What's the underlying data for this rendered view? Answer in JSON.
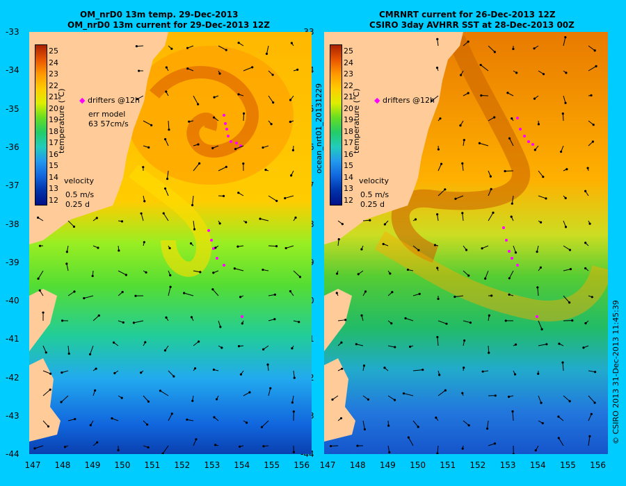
{
  "left_panel": {
    "title_line1": "OM_nrD0 13m temp. 29-Dec-2013",
    "title_line2": "OM_nrD0 13m current for 29-Dec-2013 12Z",
    "drifters_label": "drifters @12h",
    "err_label_1": "err model",
    "err_label_2": "63 57cm/s",
    "velocity_label": "velocity",
    "velocity_scale_1": "0.5 m/s",
    "velocity_scale_2": "0.25 d",
    "colorbar_title": "temperature (℃)"
  },
  "right_panel": {
    "title_line1": "CMRNRT current for 26-Dec-2013 12Z",
    "title_line2": "CSIRO 3day AVHRR SST at 28-Dec-2013 00Z",
    "drifters_label": "drifters @12h",
    "velocity_label": "velocity",
    "velocity_scale_1": "0.5 m/s",
    "velocity_scale_2": "0.25 d",
    "colorbar_title": "temperature (℃)",
    "side_label": "ocean_nrt01_20131229"
  },
  "credit": "© CSIRO 2013  31-Dec-2013 11:45:39",
  "y_ticks": [
    "-33",
    "-34",
    "-35",
    "-36",
    "-37",
    "-38",
    "-39",
    "-40",
    "-41",
    "-42",
    "-43",
    "-44"
  ],
  "x_ticks": [
    "147",
    "148",
    "149",
    "150",
    "151",
    "152",
    "153",
    "154",
    "155",
    "156"
  ],
  "colorbar_labels": [
    "25",
    "24",
    "23",
    "22",
    "21",
    "20",
    "19",
    "18",
    "17",
    "16",
    "15",
    "14",
    "13",
    "12"
  ],
  "colors": {
    "background": "#00ccff",
    "land": "#ffcc99",
    "drifter": "#ff00ff"
  }
}
